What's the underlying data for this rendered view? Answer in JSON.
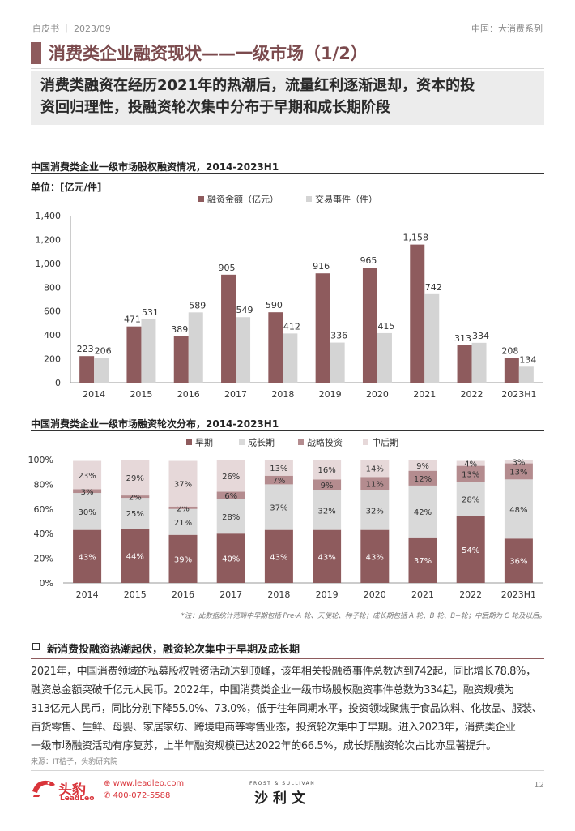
{
  "header": {
    "left": "白皮书 ｜ 2023/09",
    "right": "中国：大消费系列"
  },
  "page_title": "消费类企业融资现状——一级市场（1/2）",
  "summary_lines": [
    "消费类融资在经历2021年的热潮后，流量红利逐渐退却，资本的投",
    "资回归理性，投融资轮次集中分布于早期和成长期阶段"
  ],
  "colors": {
    "accent": "#8e5b5d",
    "series_primary": "#8e5b5d",
    "series_secondary": "#d4d4d4",
    "strategic": "#b48c8f",
    "late": "#e6d8d9",
    "brand_red": "#d9343a"
  },
  "chart_data": [
    {
      "type": "bar",
      "title": "中国消费类企业一级市场股权融资情况，2014-2023H1",
      "unit_label": "单位：[亿元/件]",
      "categories": [
        "2014",
        "2015",
        "2016",
        "2017",
        "2018",
        "2019",
        "2020",
        "2021",
        "2022",
        "2023H1"
      ],
      "series": [
        {
          "name": "融资金额（亿元）",
          "values": [
            223,
            471,
            389,
            905,
            590,
            916,
            965,
            1158,
            313,
            208
          ],
          "labels": [
            "223",
            "471",
            "389",
            "905",
            "590",
            "916",
            "965",
            "1,158",
            "313",
            "208"
          ]
        },
        {
          "name": "交易事件（件）",
          "values": [
            206,
            531,
            589,
            549,
            412,
            336,
            415,
            742,
            334,
            134
          ],
          "labels": [
            "206",
            "531",
            "589",
            "549",
            "412",
            "336",
            "415",
            "742",
            "334",
            "134"
          ]
        }
      ],
      "ylim": [
        0,
        1400
      ],
      "yticks": [
        0,
        200,
        400,
        600,
        800,
        1000,
        1200,
        1400
      ],
      "ytick_labels": [
        "0",
        "200",
        "400",
        "600",
        "800",
        "1,000",
        "1,200",
        "1,400"
      ],
      "legend_position": "top-center",
      "grid": false
    },
    {
      "type": "bar",
      "stacked": true,
      "title": "中国消费类企业一级市场融资轮次分布，2014-2023H1",
      "categories": [
        "2014",
        "2015",
        "2016",
        "2017",
        "2018",
        "2019",
        "2020",
        "2021",
        "2022",
        "2023H1"
      ],
      "series": [
        {
          "name": "早期",
          "values": [
            43,
            44,
            39,
            40,
            43,
            43,
            43,
            37,
            54,
            36
          ]
        },
        {
          "name": "成长期",
          "values": [
            30,
            25,
            21,
            28,
            37,
            32,
            32,
            42,
            28,
            48
          ]
        },
        {
          "name": "战略投资",
          "values": [
            3,
            2,
            2,
            6,
            7,
            9,
            11,
            12,
            13,
            13
          ]
        },
        {
          "name": "中后期",
          "values": [
            23,
            29,
            37,
            26,
            13,
            16,
            14,
            9,
            4,
            3
          ]
        }
      ],
      "ylim": [
        0,
        100
      ],
      "yticks": [
        0,
        20,
        40,
        60,
        80,
        100
      ],
      "ytick_labels": [
        "0%",
        "20%",
        "40%",
        "60%",
        "80%",
        "100%"
      ],
      "legend_position": "top-center",
      "grid": false
    }
  ],
  "chart_note": "*注：此数据统计范畴中早期包括 Pre-A 轮、天使轮、种子轮；成长期包括 A 轮、B 轮、B+轮；中后期为 C 轮及以后。",
  "section_heading": "新消费投融资热潮起伏，融资轮次集中于早期及成长期",
  "body_lines": [
    "2021年，中国消费领域的私募股权融资活动达到顶峰，该年相关投融资事件总数达到742起，同比增长78.8%，",
    "融资总金额突破千亿元人民币。2022年，中国消费类企业一级市场股权融资事件总数为334起，融资规模为",
    "313亿元人民币，同比分别下降55.0%、73.0%，低于往年同期水平，投资领域聚焦于食品饮料、化妆品、服装、",
    "百货零售、生鲜、母婴、家居家纺、跨境电商等零售业态，投资轮次集中于早期。进入2023年，消费类企业",
    "一级市场融资活动有序复苏，上半年融资规模已达2022年的66.5%，成长期融资轮次占比亦显著提升。"
  ],
  "source": "来源：IT桔子，头豹研究院",
  "footer": {
    "logo_cn": "头豹",
    "logo_en": "LeadLeo",
    "url": "www.leadleo.com",
    "tel": "400-072-5588",
    "partner_small": "FROST & SULLIVAN",
    "partner_big": "沙利文",
    "page_number": "12"
  }
}
